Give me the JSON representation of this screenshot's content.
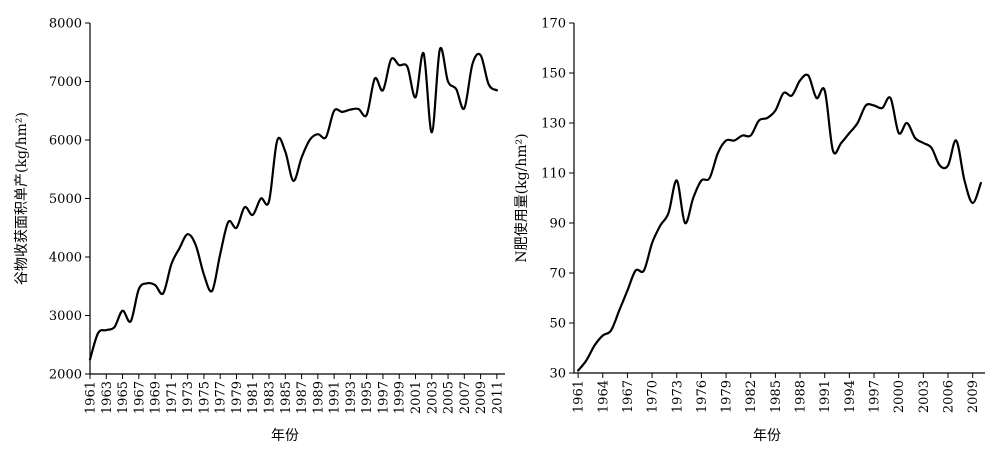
{
  "chart_data": [
    {
      "type": "line",
      "title": "",
      "xlabel": "年份",
      "ylabel": "谷物收获面积单产(kg/hm²)",
      "ylim": [
        2000,
        8000
      ],
      "yticks": [
        2000,
        3000,
        4000,
        5000,
        6000,
        7000,
        8000
      ],
      "xticks": [
        "1961",
        "1963",
        "1965",
        "1967",
        "1969",
        "1971",
        "1973",
        "1975",
        "1977",
        "1979",
        "1981",
        "1983",
        "1985",
        "1987",
        "1989",
        "1991",
        "1993",
        "1995",
        "1997",
        "1999",
        "2001",
        "2003",
        "2005",
        "2007",
        "2009",
        "2011"
      ],
      "series": [
        {
          "x": [
            1961,
            1962,
            1963,
            1964,
            1965,
            1966,
            1967,
            1968,
            1969,
            1970,
            1971,
            1972,
            1973,
            1974,
            1975,
            1976,
            1977,
            1978,
            1979,
            1980,
            1981,
            1982,
            1983,
            1984,
            1985,
            1986,
            1987,
            1988,
            1989,
            1990,
            1991,
            1992,
            1993,
            1994,
            1995,
            1996,
            1997,
            1998,
            1999,
            2000,
            2001,
            2002,
            2003,
            2004,
            2005,
            2006,
            2007,
            2008,
            2009,
            2010,
            2011
          ],
          "values": [
            2250,
            2700,
            2750,
            2800,
            3080,
            2900,
            3450,
            3550,
            3520,
            3380,
            3880,
            4150,
            4390,
            4200,
            3700,
            3420,
            4050,
            4600,
            4500,
            4850,
            4720,
            5000,
            4950,
            5990,
            5800,
            5300,
            5700,
            6000,
            6100,
            6050,
            6500,
            6480,
            6520,
            6530,
            6430,
            7050,
            6850,
            7380,
            7280,
            7250,
            6730,
            7480,
            6130,
            7550,
            7000,
            6870,
            6540,
            7300,
            7450,
            6950,
            6850
          ]
        }
      ]
    },
    {
      "type": "line",
      "title": "",
      "xlabel": "年份",
      "ylabel": "N肥使用量(kg/hm²)",
      "ylim": [
        30,
        170
      ],
      "yticks": [
        30,
        50,
        70,
        90,
        110,
        130,
        150,
        170
      ],
      "xticks": [
        "1961",
        "1964",
        "1967",
        "1970",
        "1973",
        "1976",
        "1979",
        "1982",
        "1985",
        "1988",
        "1991",
        "1994",
        "1997",
        "2000",
        "2003",
        "2006",
        "2009"
      ],
      "series": [
        {
          "x": [
            1961,
            1962,
            1963,
            1964,
            1965,
            1966,
            1967,
            1968,
            1969,
            1970,
            1971,
            1972,
            1973,
            1974,
            1975,
            1976,
            1977,
            1978,
            1979,
            1980,
            1981,
            1982,
            1983,
            1984,
            1985,
            1986,
            1987,
            1988,
            1989,
            1990,
            1991,
            1992,
            1993,
            1994,
            1995,
            1996,
            1997,
            1998,
            1999,
            2000,
            2001,
            2002,
            2003,
            2004,
            2005,
            2006,
            2007,
            2008,
            2009,
            2010
          ],
          "values": [
            31,
            35,
            41,
            45,
            47,
            55,
            63,
            71,
            71,
            82,
            89,
            94,
            107,
            90,
            100,
            107,
            108,
            118,
            123,
            123,
            125,
            125,
            131,
            132,
            135,
            142,
            141,
            147,
            149,
            140,
            143,
            119,
            122,
            126,
            130,
            137,
            137,
            136,
            140,
            126,
            130,
            124,
            122,
            120,
            113,
            113,
            123,
            107,
            98,
            106
          ]
        }
      ]
    }
  ]
}
